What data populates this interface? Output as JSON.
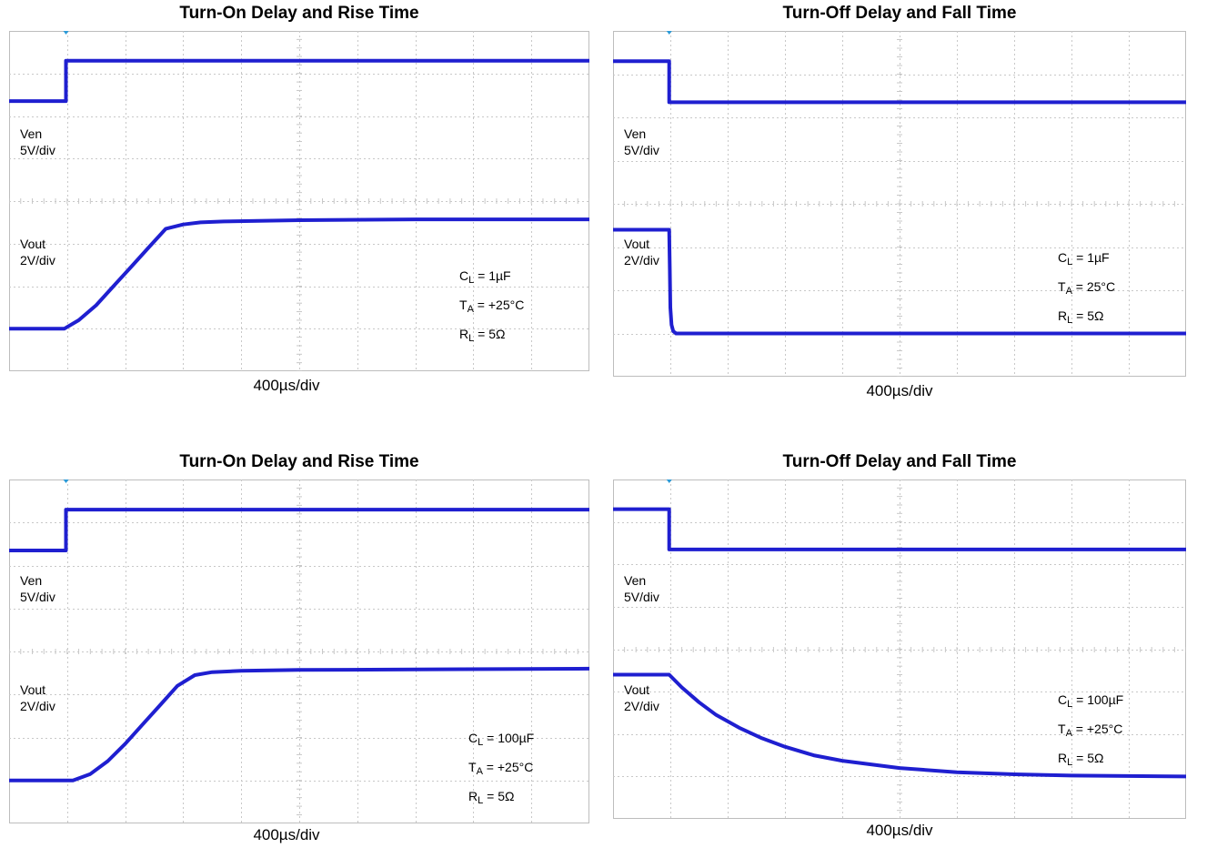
{
  "colors": {
    "trace": "#1f1fd0",
    "grid": "#c8c8c8",
    "marker": "#2a9ad8"
  },
  "chart_data": [
    {
      "type": "line",
      "title": "Turn-On Delay and Rise Time",
      "xlabel": "400µs/div",
      "x_divisions": 10,
      "y_divisions": 8,
      "grid": true,
      "channels": [
        {
          "label": "Ven",
          "scale": "5V/div"
        },
        {
          "label": "Vout",
          "scale": "2V/div"
        }
      ],
      "conditions": [
        {
          "sym": "C",
          "sub": "L",
          "val": " = 1µF"
        },
        {
          "sym": "T",
          "sub": "A",
          "val": " = +25°C"
        },
        {
          "sym": "R",
          "sub": "L",
          "val": " = 5Ω"
        }
      ],
      "series": [
        {
          "name": "Ven",
          "div_x": [
            0,
            0.98,
            0.98,
            10
          ],
          "div_y": [
            6.35,
            6.35,
            7.3,
            7.3
          ]
        },
        {
          "name": "Vout",
          "div_x": [
            0,
            0.95,
            1.2,
            1.5,
            1.8,
            2.1,
            2.4,
            2.7,
            3.0,
            3.3,
            3.7,
            5.0,
            7.0,
            10
          ],
          "div_y": [
            1.0,
            1.0,
            1.2,
            1.55,
            2.0,
            2.45,
            2.9,
            3.35,
            3.45,
            3.5,
            3.52,
            3.55,
            3.57,
            3.57
          ]
        }
      ]
    },
    {
      "type": "line",
      "title": "Turn-Off Delay and Fall Time",
      "xlabel": "400µs/div",
      "x_divisions": 10,
      "y_divisions": 8,
      "grid": true,
      "channels": [
        {
          "label": "Ven",
          "scale": "5V/div"
        },
        {
          "label": "Vout",
          "scale": "2V/div"
        }
      ],
      "conditions": [
        {
          "sym": "C",
          "sub": "L",
          "val": " = 1µF"
        },
        {
          "sym": "T",
          "sub": "A",
          "val": " = 25°C"
        },
        {
          "sym": "R",
          "sub": "L",
          "val": " = 5Ω"
        }
      ],
      "series": [
        {
          "name": "Ven",
          "div_x": [
            0,
            0.98,
            0.98,
            10
          ],
          "div_y": [
            7.3,
            7.3,
            6.35,
            6.35
          ]
        },
        {
          "name": "Vout",
          "div_x": [
            0,
            0.98,
            0.99,
            1.0,
            1.02,
            1.05,
            1.1,
            10
          ],
          "div_y": [
            3.4,
            3.4,
            2.5,
            1.6,
            1.2,
            1.05,
            1.0,
            1.0
          ]
        }
      ]
    },
    {
      "type": "line",
      "title": "Turn-On Delay and Rise Time",
      "xlabel": "400µs/div",
      "x_divisions": 10,
      "y_divisions": 8,
      "grid": true,
      "channels": [
        {
          "label": "Ven",
          "scale": "5V/div"
        },
        {
          "label": "Vout",
          "scale": "2V/div"
        }
      ],
      "conditions": [
        {
          "sym": "C",
          "sub": "L",
          "val": " = 100µF"
        },
        {
          "sym": "T",
          "sub": "A",
          "val": " = +25°C"
        },
        {
          "sym": "R",
          "sub": "L",
          "val": " = 5Ω"
        }
      ],
      "series": [
        {
          "name": "Ven",
          "div_x": [
            0,
            0.98,
            0.98,
            10
          ],
          "div_y": [
            6.35,
            6.35,
            7.3,
            7.3
          ]
        },
        {
          "name": "Vout",
          "div_x": [
            0,
            1.1,
            1.4,
            1.7,
            2.0,
            2.3,
            2.6,
            2.9,
            3.2,
            3.5,
            4.0,
            5.0,
            7.0,
            10
          ],
          "div_y": [
            1.0,
            1.0,
            1.15,
            1.45,
            1.85,
            2.3,
            2.75,
            3.2,
            3.45,
            3.52,
            3.55,
            3.57,
            3.58,
            3.6
          ]
        }
      ]
    },
    {
      "type": "line",
      "title": "Turn-Off Delay and Fall Time",
      "xlabel": "400µs/div",
      "x_divisions": 10,
      "y_divisions": 8,
      "grid": true,
      "channels": [
        {
          "label": "Ven",
          "scale": "5V/div"
        },
        {
          "label": "Vout",
          "scale": "2V/div"
        }
      ],
      "conditions": [
        {
          "sym": "C",
          "sub": "L",
          "val": " = 100µF"
        },
        {
          "sym": "T",
          "sub": "A",
          "val": " = +25°C"
        },
        {
          "sym": "R",
          "sub": "L",
          "val": " = 5Ω"
        }
      ],
      "series": [
        {
          "name": "Ven",
          "div_x": [
            0,
            0.98,
            0.98,
            10
          ],
          "div_y": [
            7.3,
            7.3,
            6.35,
            6.35
          ]
        },
        {
          "name": "Vout",
          "div_x": [
            0,
            0.98,
            1.2,
            1.5,
            1.8,
            2.2,
            2.6,
            3.0,
            3.5,
            4.0,
            5.0,
            6.0,
            7.0,
            8.0,
            10
          ],
          "div_y": [
            3.4,
            3.4,
            3.1,
            2.75,
            2.45,
            2.15,
            1.9,
            1.7,
            1.5,
            1.37,
            1.2,
            1.1,
            1.05,
            1.02,
            1.0
          ]
        }
      ]
    }
  ]
}
